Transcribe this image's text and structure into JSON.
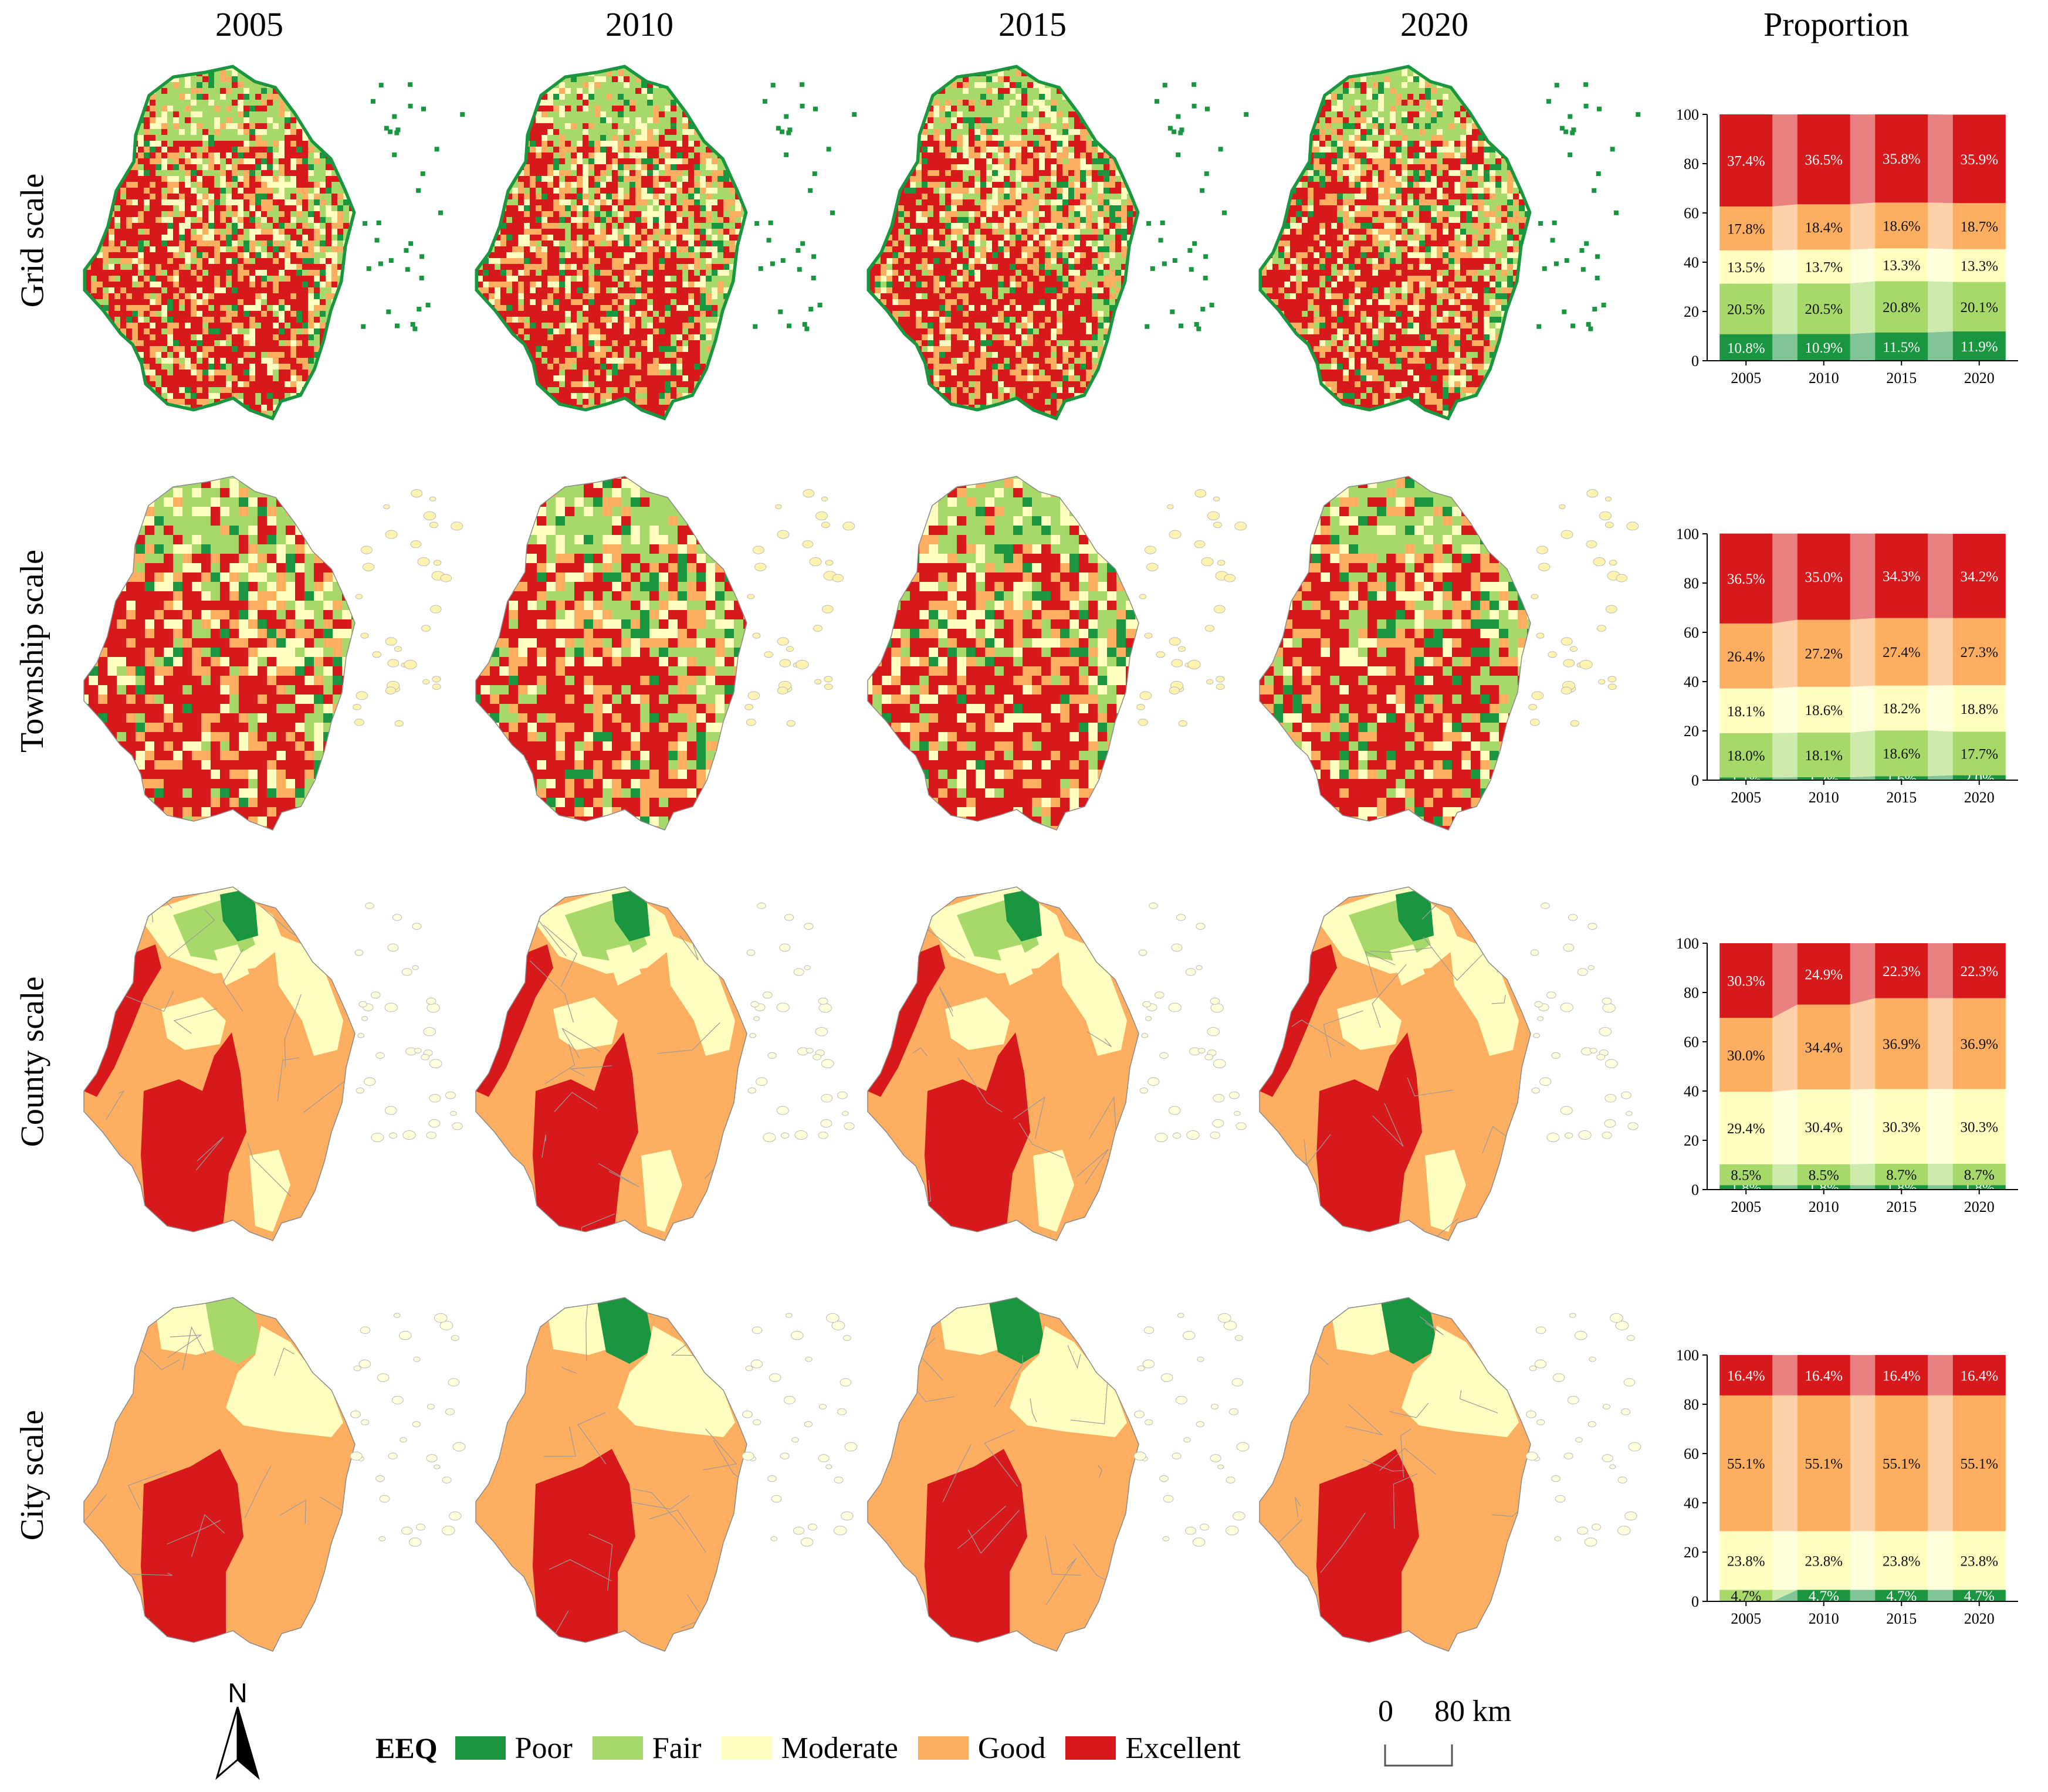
{
  "years": [
    "2005",
    "2010",
    "2015",
    "2020"
  ],
  "proportion_label": "Proportion",
  "rows": [
    "Grid scale",
    "Township scale",
    "County scale",
    "City scale"
  ],
  "classes": [
    {
      "name": "Poor",
      "color": "#1a9641"
    },
    {
      "name": "Fair",
      "color": "#a6d96a"
    },
    {
      "name": "Moderate",
      "color": "#ffffbf"
    },
    {
      "name": "Good",
      "color": "#fdae61"
    },
    {
      "name": "Excellent",
      "color": "#d7191c"
    }
  ],
  "legend": {
    "title": "EEQ"
  },
  "north_label": "N",
  "scale_bar": {
    "zero": "0",
    "end": "80 km"
  },
  "chart_data": [
    {
      "type": "bar",
      "stacked": true,
      "scale": "Grid scale",
      "categories": [
        "2005",
        "2010",
        "2015",
        "2020"
      ],
      "ylim": [
        0,
        100
      ],
      "yticks": [
        0,
        20,
        40,
        60,
        80,
        100
      ],
      "series": [
        {
          "name": "Poor",
          "values": [
            10.8,
            10.9,
            11.5,
            11.9
          ],
          "labels": [
            "10.8%",
            "10.9%",
            "11.5%",
            "11.9%"
          ]
        },
        {
          "name": "Fair",
          "values": [
            20.5,
            20.5,
            20.8,
            20.1
          ],
          "labels": [
            "20.5%",
            "20.5%",
            "20.8%",
            "20.1%"
          ]
        },
        {
          "name": "Moderate",
          "values": [
            13.5,
            13.7,
            13.3,
            13.3
          ],
          "labels": [
            "13.5%",
            "13.7%",
            "13.3%",
            "13.3%"
          ]
        },
        {
          "name": "Good",
          "values": [
            17.8,
            18.4,
            18.6,
            18.7
          ],
          "labels": [
            "17.8%",
            "18.4%",
            "18.6%",
            "18.7%"
          ]
        },
        {
          "name": "Excellent",
          "values": [
            37.4,
            36.5,
            35.8,
            35.9
          ],
          "labels": [
            "37.4%",
            "36.5%",
            "35.8%",
            "35.9%"
          ]
        }
      ]
    },
    {
      "type": "bar",
      "stacked": true,
      "scale": "Township scale",
      "categories": [
        "2005",
        "2010",
        "2015",
        "2020"
      ],
      "ylim": [
        0,
        100
      ],
      "yticks": [
        0,
        20,
        40,
        60,
        80,
        100
      ],
      "series": [
        {
          "name": "Poor",
          "values": [
            1.1,
            1.2,
            1.6,
            2.0
          ],
          "labels": [
            "1.1%",
            "1.2%",
            "1.6%",
            "2.0%"
          ]
        },
        {
          "name": "Fair",
          "values": [
            18.0,
            18.1,
            18.6,
            17.7
          ],
          "labels": [
            "18.0%",
            "18.1%",
            "18.6%",
            "17.7%"
          ]
        },
        {
          "name": "Moderate",
          "values": [
            18.1,
            18.6,
            18.2,
            18.8
          ],
          "labels": [
            "18.1%",
            "18.6%",
            "18.2%",
            "18.8%"
          ]
        },
        {
          "name": "Good",
          "values": [
            26.4,
            27.2,
            27.4,
            27.3
          ],
          "labels": [
            "26.4%",
            "27.2%",
            "27.4%",
            "27.3%"
          ]
        },
        {
          "name": "Excellent",
          "values": [
            36.5,
            35.0,
            34.3,
            34.2
          ],
          "labels": [
            "36.5%",
            "35.0%",
            "34.3%",
            "34.2%"
          ]
        }
      ]
    },
    {
      "type": "bar",
      "stacked": true,
      "scale": "County scale",
      "categories": [
        "2005",
        "2010",
        "2015",
        "2020"
      ],
      "ylim": [
        0,
        100
      ],
      "yticks": [
        0,
        20,
        40,
        60,
        80,
        100
      ],
      "series": [
        {
          "name": "Poor",
          "values": [
            1.8,
            1.8,
            1.8,
            1.8
          ],
          "labels": [
            "1.8%",
            "1.8%",
            "1.8%",
            "1.8%"
          ]
        },
        {
          "name": "Fair",
          "values": [
            8.5,
            8.5,
            8.7,
            8.7
          ],
          "labels": [
            "8.5%",
            "8.5%",
            "8.7%",
            "8.7%"
          ]
        },
        {
          "name": "Moderate",
          "values": [
            29.4,
            30.4,
            30.3,
            30.3
          ],
          "labels": [
            "29.4%",
            "30.4%",
            "30.3%",
            "30.3%"
          ]
        },
        {
          "name": "Good",
          "values": [
            30.0,
            34.4,
            36.9,
            36.9
          ],
          "labels": [
            "30.0%",
            "34.4%",
            "36.9%",
            "36.9%"
          ]
        },
        {
          "name": "Excellent",
          "values": [
            30.3,
            24.9,
            22.3,
            22.3
          ],
          "labels": [
            "30.3%",
            "24.9%",
            "22.3%",
            "22.3%"
          ]
        }
      ]
    },
    {
      "type": "bar",
      "stacked": true,
      "scale": "City scale",
      "categories": [
        "2005",
        "2010",
        "2015",
        "2020"
      ],
      "ylim": [
        0,
        100
      ],
      "yticks": [
        0,
        20,
        40,
        60,
        80,
        100
      ],
      "series": [
        {
          "name": "Poor",
          "values": [
            0,
            4.7,
            4.7,
            4.7
          ],
          "labels": [
            "",
            "4.7%",
            "4.7%",
            "4.7%"
          ]
        },
        {
          "name": "Fair",
          "values": [
            4.7,
            0,
            0,
            0
          ],
          "labels": [
            "4.7%",
            "",
            "",
            ""
          ]
        },
        {
          "name": "Moderate",
          "values": [
            23.8,
            23.8,
            23.8,
            23.8
          ],
          "labels": [
            "23.8%",
            "23.8%",
            "23.8%",
            "23.8%"
          ]
        },
        {
          "name": "Good",
          "values": [
            55.1,
            55.1,
            55.1,
            55.1
          ],
          "labels": [
            "55.1%",
            "55.1%",
            "55.1%",
            "55.1%"
          ]
        },
        {
          "name": "Excellent",
          "values": [
            16.4,
            16.4,
            16.4,
            16.4
          ],
          "labels": [
            "16.4%",
            "16.4%",
            "16.4%",
            "16.4%"
          ]
        }
      ]
    }
  ]
}
